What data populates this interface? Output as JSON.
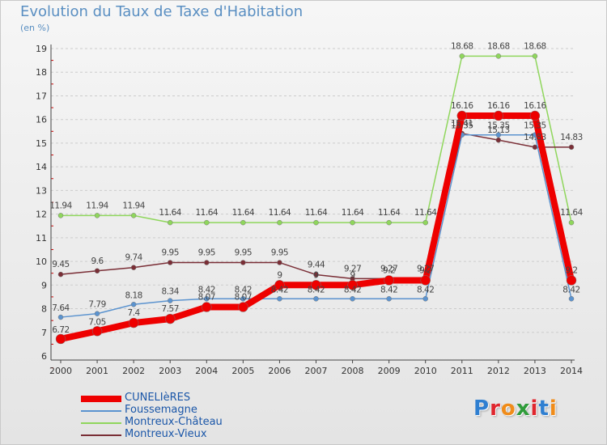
{
  "title": "Evolution du Taux de Taxe d'Habitation",
  "units": "(en %)",
  "logo_text": "Proxiti",
  "colors": {
    "background_top": "#f6f6f6",
    "background_bottom": "#e4e4e4",
    "title": "#5a8fc2",
    "grid": "#cccccc",
    "axis_tick": "#cc0000"
  },
  "chart_data": {
    "type": "line",
    "title": "Evolution du Taux de Taxe d'Habitation",
    "ylabel": "(en %)",
    "xlabel": "",
    "x": [
      "2000",
      "2001",
      "2002",
      "2003",
      "2004",
      "2005",
      "2006",
      "2007",
      "2008",
      "2009",
      "2010",
      "2011",
      "2012",
      "2013",
      "2014"
    ],
    "ylim": [
      6,
      19
    ],
    "yticks": [
      6,
      7,
      8,
      9,
      10,
      11,
      12,
      13,
      14,
      15,
      16,
      17,
      18,
      19
    ],
    "grid": "horizontal dashed",
    "legend_position": "bottom-left",
    "series": [
      {
        "name": "CUNELIèRES",
        "color": "#ee0000",
        "values": [
          6.72,
          7.05,
          7.4,
          7.57,
          8.07,
          8.07,
          9,
          9,
          9,
          9.2,
          9.2,
          16.16,
          16.16,
          16.16,
          9.2
        ],
        "labels": [
          "6.72",
          "7.05",
          "7.4",
          "7.57",
          "8.07",
          "8.07",
          "9",
          "9",
          "9",
          "9.2",
          "9.2",
          "16.16",
          "16.16",
          "16.16",
          "9.2"
        ]
      },
      {
        "name": "Foussemagne",
        "color": "#5b93cf",
        "values": [
          7.64,
          7.79,
          8.18,
          8.34,
          8.42,
          8.42,
          8.42,
          8.42,
          8.42,
          8.42,
          8.42,
          15.35,
          15.35,
          15.35,
          8.42
        ],
        "labels": [
          "7.64",
          "7.79",
          "8.18",
          "8.34",
          "8.42",
          "8.42",
          "8.42",
          "8.42",
          "8.42",
          "8.42",
          "8.42",
          "15.35",
          "15.35",
          "15.35",
          "8.42"
        ]
      },
      {
        "name": "Montreux-Château",
        "color": "#8fd65c",
        "values": [
          11.94,
          11.94,
          11.94,
          11.64,
          11.64,
          11.64,
          11.64,
          11.64,
          11.64,
          11.64,
          11.64,
          18.68,
          18.68,
          18.68,
          11.64
        ],
        "labels": [
          "11.94",
          "11.94",
          "11.94",
          "11.64",
          "11.64",
          "11.64",
          "11.64",
          "11.64",
          "11.64",
          "11.64",
          "11.64",
          "18.68",
          "18.68",
          "18.68",
          "11.64"
        ]
      },
      {
        "name": "Montreux-Vieux",
        "color": "#7a2e36",
        "values": [
          9.45,
          9.6,
          9.74,
          9.95,
          9.95,
          9.95,
          9.95,
          9.44,
          9.27,
          9.27,
          9.27,
          15.41,
          15.13,
          14.83,
          14.83
        ],
        "labels": [
          "9.45",
          "9.6",
          "9.74",
          "9.95",
          "9.95",
          "9.95",
          "9.95",
          "9.44",
          "9.27",
          "9.27",
          "9.27",
          "15.41",
          "15.13",
          "14.83",
          "14.83"
        ]
      }
    ]
  }
}
